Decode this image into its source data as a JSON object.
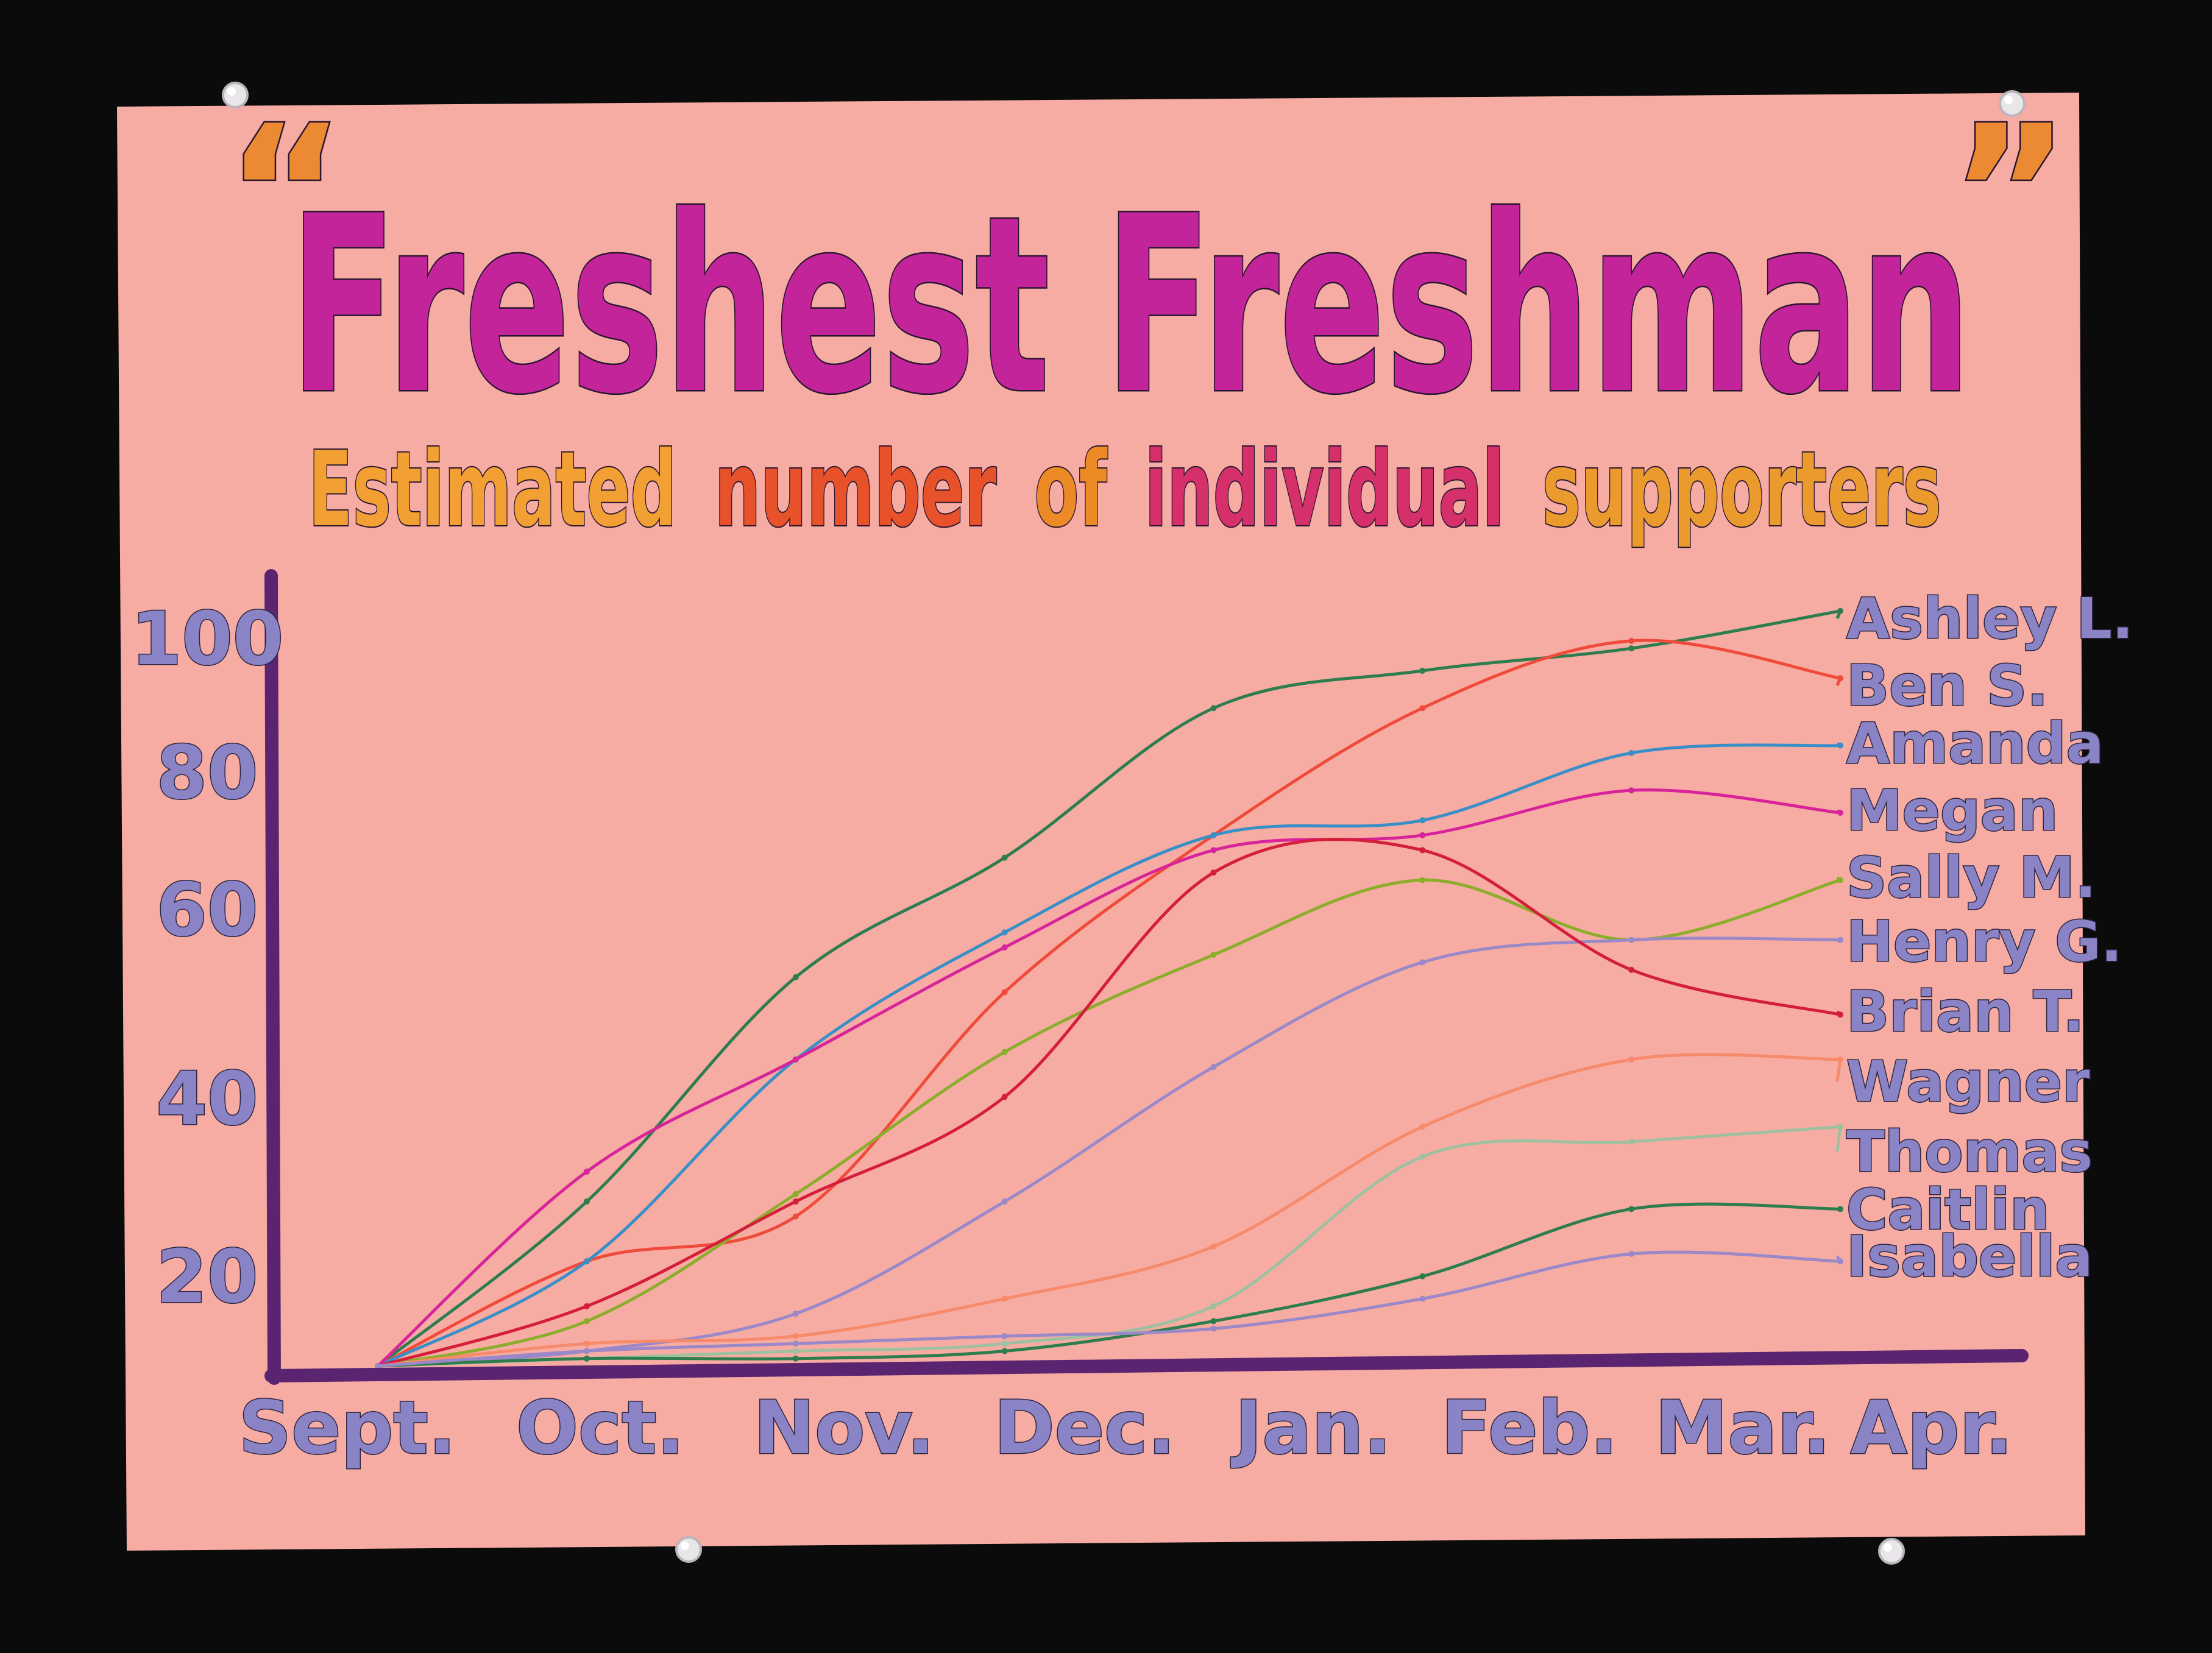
{
  "poster": {
    "title": "Freshest Freshman",
    "quote_open": "“",
    "quote_close": "”",
    "subtitle_words": [
      "Estimated",
      "number",
      "of",
      "individual",
      "supporters"
    ],
    "colors": {
      "paper": "#f7aca3",
      "title": "#c4249a",
      "axis": "#5a2470",
      "label_fill": "#8a83c6",
      "subtitle": [
        "#f2a033",
        "#e8522a",
        "#ec8a26",
        "#d6306b",
        "#eb9a2e"
      ]
    }
  },
  "chart_data": {
    "type": "line",
    "title": "Estimated number of individual supporters",
    "xlabel": "",
    "ylabel": "",
    "x_ticks": [
      "Sept.",
      "Oct.",
      "Nov.",
      "Dec.",
      "Jan.",
      "Feb.",
      "Mar.",
      "Apr."
    ],
    "y_ticks": [
      20,
      40,
      60,
      80,
      100
    ],
    "ylim": [
      0,
      100
    ],
    "x_range": [
      "Sept.",
      "Apr."
    ],
    "grid": false,
    "legend": "right (end labels)",
    "x": [
      "Sept.",
      "Oct.",
      "Nov.",
      "Dec.",
      "Jan.",
      "Feb.",
      "Mar.",
      "Apr."
    ],
    "series": [
      {
        "name": "Ashley L.",
        "color": "#2e7d4f",
        "values": [
          0,
          22,
          52,
          68,
          88,
          93,
          96,
          101
        ]
      },
      {
        "name": "Ben S.",
        "color": "#ef4a3a",
        "values": [
          0,
          14,
          20,
          50,
          71,
          88,
          97,
          92
        ]
      },
      {
        "name": "Amanda",
        "color": "#3a8fc7",
        "values": [
          0,
          14,
          41,
          58,
          71,
          73,
          82,
          83
        ]
      },
      {
        "name": "Megan",
        "color": "#d8249a",
        "values": [
          0,
          26,
          41,
          56,
          69,
          71,
          77,
          74
        ]
      },
      {
        "name": "Sally M.",
        "color": "#8cad2c",
        "values": [
          0,
          6,
          23,
          42,
          55,
          65,
          57,
          65
        ]
      },
      {
        "name": "Henry G.",
        "color": "#9a88c8",
        "values": [
          0,
          2,
          7,
          22,
          40,
          54,
          57,
          57
        ]
      },
      {
        "name": "Brian T.",
        "color": "#d41f3a",
        "values": [
          0,
          8,
          22,
          36,
          66,
          69,
          53,
          47
        ]
      },
      {
        "name": "Wagner",
        "color": "#f68a6a",
        "values": [
          0,
          3,
          4,
          9,
          16,
          32,
          41,
          41
        ]
      },
      {
        "name": "Thomas",
        "color": "#9ec0a0",
        "values": [
          0,
          1,
          2,
          3,
          8,
          28,
          30,
          32
        ]
      },
      {
        "name": "Caitlin",
        "color": "#2e7d4f",
        "values": [
          0,
          1,
          1,
          2,
          6,
          12,
          21,
          21
        ]
      },
      {
        "name": "Isabella",
        "color": "#9a88c8",
        "values": [
          0,
          2,
          3,
          4,
          5,
          9,
          15,
          14
        ]
      }
    ]
  }
}
